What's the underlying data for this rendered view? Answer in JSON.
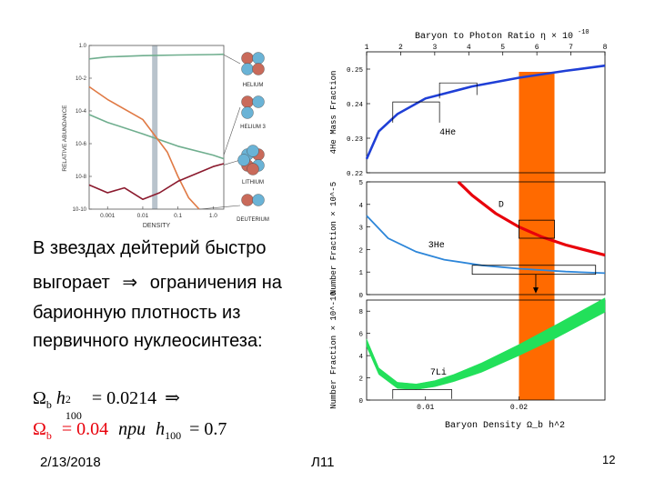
{
  "slide": {
    "text_lines": [
      "В звездах дейтерий быстро",
      "выгорает",
      "ограничения на",
      "барионную плотность из",
      "первичного нуклеосинтеза:"
    ],
    "arrow_symbol": "⇒",
    "formula1": {
      "omega": "Ω",
      "sub": "b",
      "h": "h",
      "h_sub": "100",
      "h_sup": "2",
      "eq": "= 0.0214",
      "arrow": "⇒"
    },
    "formula2": {
      "omega": "Ω",
      "sub": "b",
      "eq": "= 0.04",
      "pri": "при",
      "h": "h",
      "h_sub": "100",
      "eq2": "= 0.7"
    },
    "footer_date": "2/13/2018",
    "footer_center": "Л11",
    "page_number": "12"
  },
  "colors": {
    "red": "#e8000b",
    "band": "#ff6a00",
    "blue": "#1f3fd6",
    "lightblue": "#2d86d9",
    "green": "#22e05a",
    "left_teal": "#6fae8e",
    "left_orange": "#e07a45",
    "left_maroon": "#8b1a2e",
    "left_band": "#b9c3cc"
  },
  "chart_data": [
    {
      "type": "line",
      "title": "",
      "xlabel": "DENSITY",
      "ylabel": "RELATIVE ABUNDANCE",
      "x_scale": "log",
      "xlim": [
        0.0003,
        2
      ],
      "y_scale": "log",
      "ylim": [
        1e-10,
        1
      ],
      "x_ticks": [
        "0.001",
        "0.01",
        "0.1",
        "1.0"
      ],
      "y_ticks": [
        "1.0",
        "10^-2",
        "10^-4",
        "10^-6",
        "10^-8",
        "10^-10"
      ],
      "band_x": 0.022,
      "series": [
        {
          "name": "HELIUM",
          "x": [
            0.0003,
            0.001,
            0.01,
            0.1,
            1,
            2
          ],
          "y": [
            0.15,
            0.2,
            0.24,
            0.26,
            0.28,
            0.29
          ]
        },
        {
          "name": "HELIUM 3",
          "x": [
            0.0003,
            0.001,
            0.01,
            0.1,
            1,
            2
          ],
          "y": [
            6e-05,
            2e-05,
            4e-06,
            7e-07,
            2e-07,
            1.2e-07
          ]
        },
        {
          "name": "DEUTERIUM",
          "x": [
            0.0003,
            0.001,
            0.01,
            0.05,
            0.1,
            0.2,
            0.4
          ],
          "y": [
            0.003,
            0.0005,
            3e-05,
            3e-07,
            1e-08,
            5e-10,
            1e-10
          ]
        },
        {
          "name": "LITHIUM",
          "x": [
            0.0003,
            0.001,
            0.003,
            0.01,
            0.03,
            0.1,
            1,
            2
          ],
          "y": [
            3e-09,
            1e-09,
            2e-09,
            4e-10,
            1e-09,
            5e-09,
            4e-08,
            6e-08
          ]
        }
      ],
      "labels": [
        "HELIUM",
        "HELIUM 3",
        "LITHIUM",
        "DEUTERIUM"
      ]
    },
    {
      "type": "line",
      "title": "Baryon to Photon Ratio η × 10^-10",
      "top_axis": {
        "label": "Baryon to Photon Ratio η × 10",
        "exp": "-10",
        "ticks": [
          "1",
          "2",
          "3",
          "4",
          "5",
          "6",
          "7",
          "8"
        ]
      },
      "xlabel": "Baryon Density Ω_b h^2",
      "x_ticks": [
        "0.01",
        "0.02"
      ],
      "xlim": [
        0.0037,
        0.0292
      ],
      "band": [
        0.02,
        0.0238
      ],
      "panels": [
        {
          "name": "helium4",
          "ylabel": "4He Mass Fraction",
          "ylim": [
            0.22,
            0.255
          ],
          "y_ticks": [
            "0.22",
            "0.23",
            "0.24",
            "0.25"
          ],
          "series_label": "4He",
          "series": {
            "x": [
              0.0037,
              0.005,
              0.007,
              0.01,
              0.015,
              0.02,
              0.025,
              0.0292
            ],
            "y": [
              0.224,
              0.232,
              0.237,
              0.2415,
              0.245,
              0.2475,
              0.2495,
              0.251
            ]
          }
        },
        {
          "name": "d_he3",
          "ylabel": "Number Fraction × 10^-5",
          "ylim": [
            0,
            5
          ],
          "y_ticks": [
            "0",
            "1",
            "2",
            "3",
            "4",
            "5"
          ],
          "series": [
            {
              "name": "D",
              "x": [
                0.0135,
                0.015,
                0.0175,
                0.02,
                0.0225,
                0.025,
                0.0292
              ],
              "y": [
                5.2,
                4.4,
                3.6,
                3.0,
                2.55,
                2.2,
                1.75
              ]
            },
            {
              "name": "3He",
              "x": [
                0.0037,
                0.006,
                0.009,
                0.012,
                0.016,
                0.02,
                0.025,
                0.0292
              ],
              "y": [
                3.5,
                2.5,
                1.9,
                1.55,
                1.3,
                1.15,
                1.02,
                0.95
              ]
            }
          ]
        },
        {
          "name": "li7",
          "ylabel": "Number Fraction × 10^-10",
          "ylim": [
            0,
            9
          ],
          "y_ticks": [
            "0",
            "2",
            "4",
            "6",
            "8"
          ],
          "series_label": "7Li",
          "series": {
            "x": [
              0.0037,
              0.005,
              0.007,
              0.009,
              0.011,
              0.013,
              0.016,
              0.02,
              0.024,
              0.0292
            ],
            "lo": [
              4.8,
              2.3,
              1.05,
              0.95,
              1.2,
              1.65,
              2.5,
              4.0,
              5.6,
              7.9
            ],
            "hi": [
              5.5,
              2.9,
              1.6,
              1.45,
              1.75,
              2.3,
              3.35,
              5.0,
              6.8,
              9.2
            ]
          }
        }
      ]
    }
  ]
}
